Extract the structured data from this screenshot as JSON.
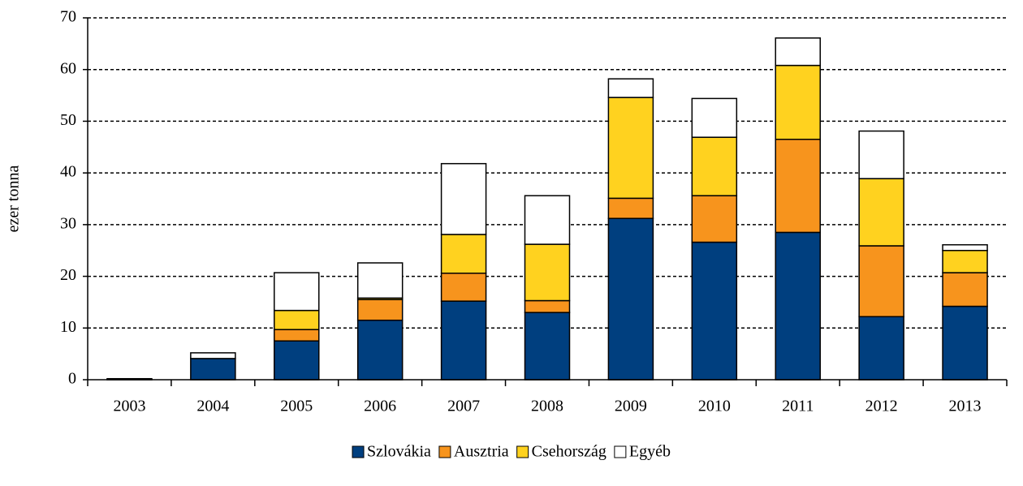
{
  "chart_data": {
    "type": "stacked_bar",
    "y_label": "ezer tonna",
    "categories": [
      "2003",
      "2004",
      "2005",
      "2006",
      "2007",
      "2008",
      "2009",
      "2010",
      "2011",
      "2012",
      "2013"
    ],
    "series": [
      {
        "name": "Szlovákia",
        "color": "#003f7f",
        "values": [
          0.2,
          4.1,
          7.5,
          11.5,
          15.2,
          13.0,
          31.2,
          26.6,
          28.5,
          12.2,
          14.2
        ]
      },
      {
        "name": "Ausztria",
        "color": "#f7941d",
        "values": [
          0,
          0,
          2.2,
          4.0,
          5.4,
          2.3,
          3.9,
          9.0,
          18.0,
          13.7,
          6.5
        ]
      },
      {
        "name": "Csehország",
        "color": "#ffd21f",
        "values": [
          0,
          0,
          3.7,
          0.3,
          7.5,
          10.9,
          19.5,
          11.3,
          14.3,
          13.0,
          4.3
        ]
      },
      {
        "name": "Egyéb",
        "color": "#ffffff",
        "values": [
          0,
          1.1,
          7.3,
          6.8,
          13.7,
          9.4,
          3.6,
          7.5,
          5.3,
          9.2,
          1.1
        ]
      }
    ],
    "ylim": [
      0,
      70
    ],
    "yticks": [
      0,
      10,
      20,
      30,
      40,
      50,
      60,
      70
    ],
    "grid": true,
    "legend": "bottom"
  }
}
